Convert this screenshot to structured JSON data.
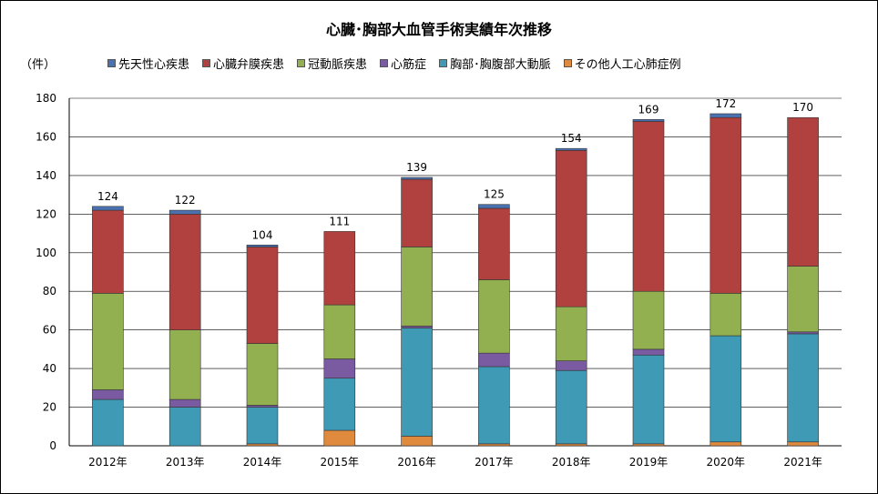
{
  "chart_data": {
    "type": "bar",
    "stacked": true,
    "title": "心臓･胸部大血管手術実績年次推移",
    "ylabel": "（件）",
    "ylim": [
      0,
      180
    ],
    "yticks": [
      0,
      20,
      40,
      60,
      80,
      100,
      120,
      140,
      160,
      180
    ],
    "grid": true,
    "legend_position": "top",
    "categories": [
      "2012年",
      "2013年",
      "2014年",
      "2015年",
      "2016年",
      "2017年",
      "2018年",
      "2019年",
      "2020年",
      "2021年"
    ],
    "totals": [
      124,
      122,
      104,
      111,
      139,
      125,
      154,
      169,
      172,
      170
    ],
    "series": [
      {
        "name": "その他人工心肺症例",
        "color": "#E08A3E",
        "values": [
          0,
          0,
          1,
          8,
          5,
          1,
          1,
          1,
          2,
          2
        ]
      },
      {
        "name": "胸部･胸腹部大動脈",
        "color": "#3F9AB5",
        "values": [
          24,
          20,
          19,
          27,
          56,
          40,
          38,
          46,
          55,
          56
        ]
      },
      {
        "name": "心筋症",
        "color": "#7A5AA0",
        "values": [
          5,
          4,
          1,
          10,
          1,
          7,
          5,
          3,
          0,
          1
        ]
      },
      {
        "name": "冠動脈疾患",
        "color": "#93B050",
        "values": [
          50,
          36,
          32,
          28,
          41,
          38,
          28,
          30,
          22,
          34
        ]
      },
      {
        "name": "心臓弁膜疾患",
        "color": "#B0413E",
        "values": [
          43,
          60,
          50,
          38,
          35,
          37,
          81,
          88,
          91,
          77
        ]
      },
      {
        "name": "先天性心疾患",
        "color": "#4A72B0",
        "values": [
          2,
          2,
          1,
          0,
          1,
          2,
          1,
          1,
          2,
          0
        ]
      }
    ],
    "legend_order": [
      "先天性心疾患",
      "心臓弁膜疾患",
      "冠動脈疾患",
      "心筋症",
      "胸部･胸腹部大動脈",
      "その他人工心肺症例"
    ]
  }
}
